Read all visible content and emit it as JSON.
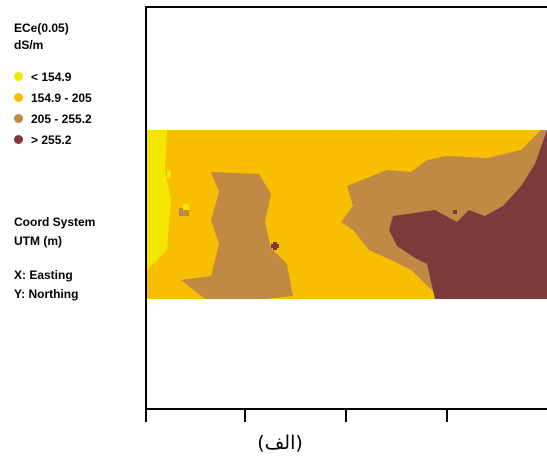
{
  "legend": {
    "title_line1": "ECe(0.05)",
    "title_line2": "dS/m",
    "items": [
      {
        "label": "< 154.9",
        "color": "#f5e600"
      },
      {
        "label": "154.9 - 205",
        "color": "#f7bf00"
      },
      {
        "label": "205 - 255.2",
        "color": "#c08a45"
      },
      {
        "label": "> 255.2",
        "color": "#7e3a3a"
      }
    ]
  },
  "coord_system": {
    "line1": "Coord System",
    "line2": "UTM (m)"
  },
  "axes": {
    "x_label": "X: Easting",
    "y_label": "Y: Northing"
  },
  "caption": "(الف)"
}
